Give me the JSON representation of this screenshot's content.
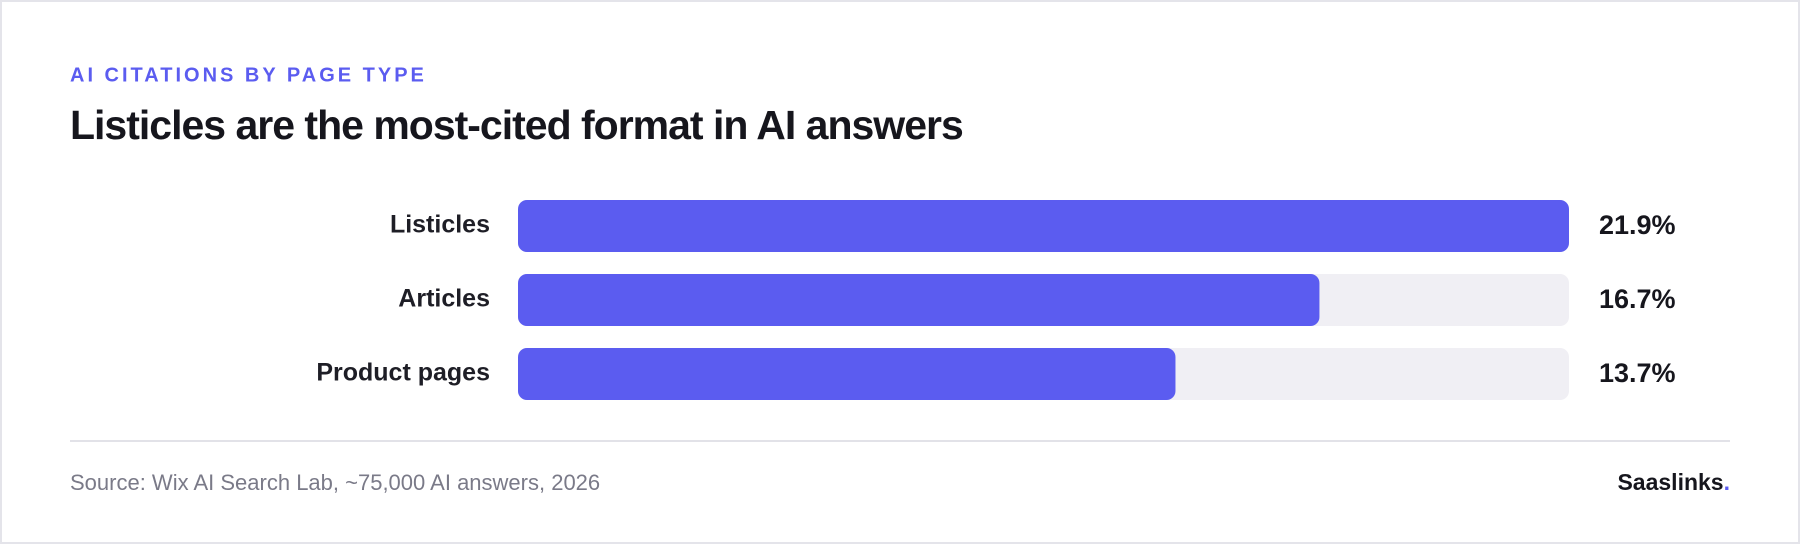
{
  "chart_data": {
    "type": "bar",
    "orientation": "horizontal",
    "eyebrow": "AI CITATIONS BY PAGE TYPE",
    "title": "Listicles are the most-cited format in AI answers",
    "categories": [
      "Listicles",
      "Articles",
      "Product pages"
    ],
    "values": [
      21.9,
      16.7,
      13.7
    ],
    "value_labels": [
      "21.9%",
      "16.7%",
      "13.7%"
    ],
    "color": "#5b5cf0",
    "track_color": "#f0eff4",
    "source": "Source: Wix AI Search Lab, ~75,000 AI answers, 2026",
    "brand": {
      "name": "Saaslinks",
      "mark": "."
    }
  }
}
